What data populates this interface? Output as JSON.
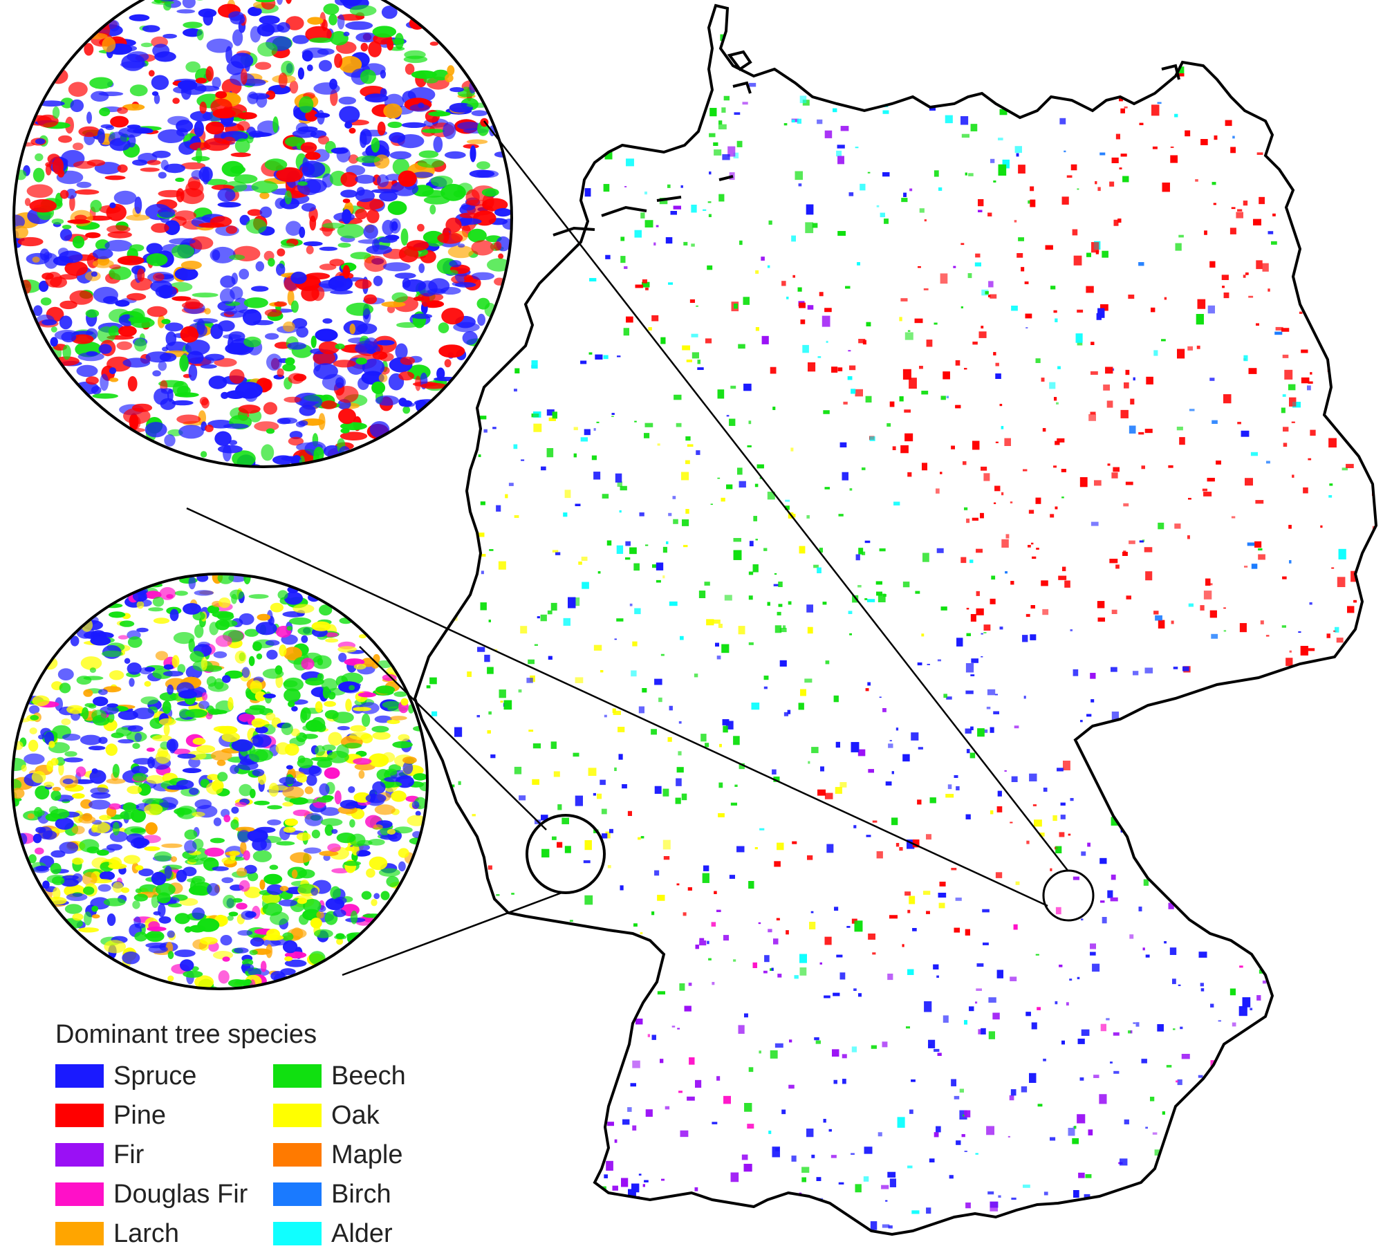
{
  "legend": {
    "title": "Dominant tree species",
    "items": [
      {
        "label": "Spruce",
        "color": "#1a1aff"
      },
      {
        "label": "Pine",
        "color": "#ff0000"
      },
      {
        "label": "Fir",
        "color": "#9a10f5"
      },
      {
        "label": "Douglas Fir",
        "color": "#ff10c8"
      },
      {
        "label": "Larch",
        "color": "#ffa500"
      },
      {
        "label": "Beech",
        "color": "#10e010"
      },
      {
        "label": "Oak",
        "color": "#ffff00"
      },
      {
        "label": "Maple",
        "color": "#ff7a00"
      },
      {
        "label": "Birch",
        "color": "#1a7aff"
      },
      {
        "label": "Alder",
        "color": "#10ffff"
      }
    ]
  },
  "map": {
    "border_color": "#000000",
    "background": "#ffffff"
  }
}
